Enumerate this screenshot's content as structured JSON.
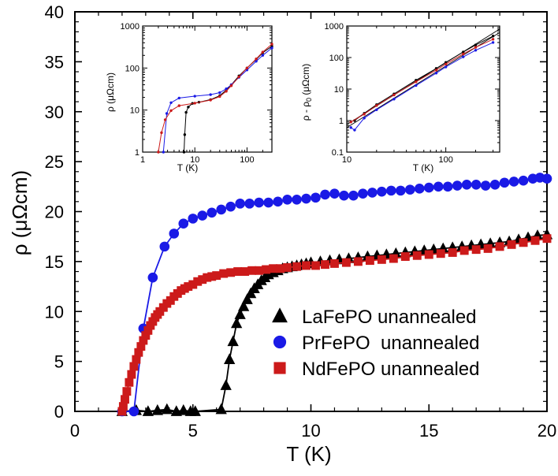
{
  "chart_data": [
    {
      "type": "line",
      "xlabel": "T (K)",
      "ylabel": "ρ (μΩcm)",
      "xlim": [
        0,
        20
      ],
      "ylim": [
        0,
        40
      ],
      "x_ticks": [
        "0",
        "5",
        "10",
        "15",
        "20"
      ],
      "y_ticks": [
        "0",
        "5",
        "10",
        "15",
        "20",
        "25",
        "30",
        "35",
        "40"
      ],
      "grid": false,
      "legend": "lower-right",
      "series": [
        {
          "name": "LaFePO unannealed",
          "color": "#000000",
          "marker": "triangle",
          "points": [
            [
              2.0,
              0.0
            ],
            [
              2.6,
              0.1
            ],
            [
              3.1,
              0.0
            ],
            [
              3.5,
              0.1
            ],
            [
              3.9,
              0.2
            ],
            [
              4.3,
              0.0
            ],
            [
              4.6,
              0.1
            ],
            [
              4.9,
              0.0
            ],
            [
              5.1,
              0.0
            ],
            [
              6.2,
              0.2
            ],
            [
              6.4,
              2.6
            ],
            [
              6.55,
              5.2
            ],
            [
              6.7,
              7.0
            ],
            [
              6.85,
              8.8
            ],
            [
              7.0,
              9.7
            ],
            [
              7.15,
              10.5
            ],
            [
              7.3,
              11.2
            ],
            [
              7.45,
              11.8
            ],
            [
              7.6,
              12.3
            ],
            [
              7.75,
              12.7
            ],
            [
              7.9,
              13.1
            ],
            [
              8.05,
              13.4
            ],
            [
              8.2,
              13.7
            ],
            [
              8.4,
              13.9
            ],
            [
              8.6,
              14.1
            ],
            [
              8.8,
              14.3
            ],
            [
              9.0,
              14.4
            ],
            [
              9.2,
              14.5
            ],
            [
              9.4,
              14.6
            ],
            [
              9.6,
              14.7
            ],
            [
              9.8,
              14.8
            ],
            [
              10.0,
              14.9
            ],
            [
              10.4,
              15.0
            ],
            [
              10.8,
              15.1
            ],
            [
              11.2,
              15.2
            ],
            [
              11.6,
              15.3
            ],
            [
              12.0,
              15.4
            ],
            [
              12.4,
              15.5
            ],
            [
              12.8,
              15.6
            ],
            [
              13.2,
              15.7
            ],
            [
              13.6,
              15.8
            ],
            [
              14.0,
              15.9
            ],
            [
              14.4,
              16.0
            ],
            [
              14.8,
              16.1
            ],
            [
              15.2,
              16.2
            ],
            [
              15.6,
              16.3
            ],
            [
              16.0,
              16.4
            ],
            [
              16.4,
              16.5
            ],
            [
              16.8,
              16.6
            ],
            [
              17.2,
              16.7
            ],
            [
              17.6,
              16.8
            ],
            [
              18.0,
              16.9
            ],
            [
              18.4,
              17.0
            ],
            [
              18.8,
              17.2
            ],
            [
              19.2,
              17.4
            ],
            [
              19.6,
              17.6
            ],
            [
              20.0,
              17.7
            ]
          ]
        },
        {
          "name": "PrFePO  unannealed",
          "color": "#1a1ae6",
          "marker": "circle",
          "points": [
            [
              2.0,
              0.0
            ],
            [
              2.5,
              0.0
            ],
            [
              2.9,
              8.3
            ],
            [
              3.3,
              13.4
            ],
            [
              3.8,
              16.5
            ],
            [
              4.2,
              17.8
            ],
            [
              4.6,
              18.8
            ],
            [
              5.0,
              19.3
            ],
            [
              5.4,
              19.6
            ],
            [
              5.8,
              19.9
            ],
            [
              6.2,
              20.2
            ],
            [
              6.6,
              20.5
            ],
            [
              7.0,
              20.8
            ],
            [
              7.4,
              20.8
            ],
            [
              7.8,
              20.9
            ],
            [
              8.2,
              20.9
            ],
            [
              8.6,
              21.0
            ],
            [
              9.0,
              21.2
            ],
            [
              9.4,
              21.2
            ],
            [
              9.8,
              21.3
            ],
            [
              10.2,
              21.4
            ],
            [
              10.6,
              21.7
            ],
            [
              11.0,
              21.8
            ],
            [
              11.4,
              21.6
            ],
            [
              11.8,
              21.6
            ],
            [
              12.2,
              21.8
            ],
            [
              12.6,
              21.9
            ],
            [
              13.0,
              22.0
            ],
            [
              13.4,
              22.1
            ],
            [
              13.8,
              22.1
            ],
            [
              14.2,
              22.2
            ],
            [
              14.6,
              22.3
            ],
            [
              15.0,
              22.4
            ],
            [
              15.4,
              22.5
            ],
            [
              15.8,
              22.5
            ],
            [
              16.2,
              22.6
            ],
            [
              16.6,
              22.7
            ],
            [
              17.0,
              22.7
            ],
            [
              17.4,
              22.6
            ],
            [
              17.8,
              22.7
            ],
            [
              18.2,
              22.9
            ],
            [
              18.6,
              23.0
            ],
            [
              19.0,
              23.1
            ],
            [
              19.4,
              23.3
            ],
            [
              19.7,
              23.4
            ],
            [
              20.0,
              23.3
            ]
          ]
        },
        {
          "name": "NdFePO unannealed",
          "color": "#cc1a1a",
          "marker": "square",
          "points": [
            [
              2.0,
              0.0
            ],
            [
              2.05,
              0.5
            ],
            [
              2.12,
              1.2
            ],
            [
              2.2,
              2.0
            ],
            [
              2.3,
              2.9
            ],
            [
              2.4,
              3.7
            ],
            [
              2.5,
              4.5
            ],
            [
              2.6,
              5.2
            ],
            [
              2.7,
              5.9
            ],
            [
              2.8,
              6.5
            ],
            [
              2.9,
              7.1
            ],
            [
              3.0,
              7.6
            ],
            [
              3.1,
              8.1
            ],
            [
              3.2,
              8.6
            ],
            [
              3.3,
              9.0
            ],
            [
              3.4,
              9.4
            ],
            [
              3.5,
              9.7
            ],
            [
              3.6,
              10.0
            ],
            [
              3.75,
              10.4
            ],
            [
              3.9,
              10.8
            ],
            [
              4.05,
              11.1
            ],
            [
              4.2,
              11.5
            ],
            [
              4.35,
              11.8
            ],
            [
              4.5,
              12.1
            ],
            [
              4.65,
              12.3
            ],
            [
              4.8,
              12.5
            ],
            [
              5.0,
              12.7
            ],
            [
              5.2,
              13.0
            ],
            [
              5.4,
              13.2
            ],
            [
              5.6,
              13.4
            ],
            [
              5.8,
              13.5
            ],
            [
              6.0,
              13.6
            ],
            [
              6.3,
              13.8
            ],
            [
              6.6,
              13.9
            ],
            [
              6.9,
              14.0
            ],
            [
              7.2,
              14.0
            ],
            [
              7.5,
              14.1
            ],
            [
              7.8,
              14.1
            ],
            [
              8.1,
              14.2
            ],
            [
              8.4,
              14.3
            ],
            [
              8.7,
              14.3
            ],
            [
              9.0,
              14.4
            ],
            [
              9.4,
              14.5
            ],
            [
              9.8,
              14.6
            ],
            [
              10.2,
              14.6
            ],
            [
              10.6,
              14.7
            ],
            [
              11.0,
              14.8
            ],
            [
              11.5,
              14.9
            ],
            [
              12.0,
              15.0
            ],
            [
              12.5,
              15.1
            ],
            [
              13.0,
              15.2
            ],
            [
              13.5,
              15.3
            ],
            [
              14.0,
              15.5
            ],
            [
              14.5,
              15.6
            ],
            [
              15.0,
              15.7
            ],
            [
              15.5,
              15.8
            ],
            [
              16.0,
              15.9
            ],
            [
              16.5,
              16.1
            ],
            [
              17.0,
              16.2
            ],
            [
              17.5,
              16.3
            ],
            [
              18.0,
              16.5
            ],
            [
              18.5,
              16.7
            ],
            [
              19.0,
              16.9
            ],
            [
              19.5,
              17.1
            ],
            [
              20.0,
              17.3
            ]
          ]
        }
      ]
    },
    {
      "type": "line",
      "xlabel": "T (K)",
      "ylabel": "ρ (μΩcm)",
      "x_scale": "log",
      "y_scale": "log",
      "xlim": [
        1,
        300
      ],
      "ylim": [
        1,
        1000
      ],
      "x_ticks": [
        "1",
        "10",
        "100"
      ],
      "y_ticks": [
        "1",
        "10",
        "100",
        "1000"
      ],
      "series": [
        {
          "color": "#000000",
          "points": [
            [
              6.2,
              1.0
            ],
            [
              6.4,
              2.6
            ],
            [
              6.8,
              8.8
            ],
            [
              7.5,
              11.8
            ],
            [
              9,
              14.4
            ],
            [
              12,
              15.4
            ],
            [
              20,
              17.7
            ],
            [
              30,
              22
            ],
            [
              40,
              30
            ],
            [
              50,
              40
            ],
            [
              70,
              65
            ],
            [
              100,
              100
            ],
            [
              150,
              160
            ],
            [
              200,
              230
            ],
            [
              300,
              330
            ]
          ]
        },
        {
          "color": "#1a1ae6",
          "points": [
            [
              2.5,
              1.0
            ],
            [
              2.9,
              8.3
            ],
            [
              3.5,
              15
            ],
            [
              5,
              19.3
            ],
            [
              10,
              21.4
            ],
            [
              20,
              23.3
            ],
            [
              30,
              26
            ],
            [
              40,
              32
            ],
            [
              50,
              40
            ],
            [
              70,
              60
            ],
            [
              100,
              90
            ],
            [
              150,
              145
            ],
            [
              200,
              200
            ],
            [
              300,
              300
            ]
          ]
        },
        {
          "color": "#cc1a1a",
          "points": [
            [
              2.0,
              1.0
            ],
            [
              2.3,
              2.9
            ],
            [
              2.7,
              5.9
            ],
            [
              3.5,
              9.7
            ],
            [
              5,
              12.7
            ],
            [
              10,
              14.6
            ],
            [
              20,
              17.3
            ],
            [
              30,
              21
            ],
            [
              40,
              28
            ],
            [
              50,
              38
            ],
            [
              70,
              62
            ],
            [
              100,
              100
            ],
            [
              150,
              165
            ],
            [
              200,
              240
            ],
            [
              300,
              370
            ]
          ]
        }
      ]
    },
    {
      "type": "line",
      "xlabel": "T (K)",
      "ylabel": "ρ - ρ0 (μΩcm)",
      "x_scale": "log",
      "y_scale": "log",
      "xlim": [
        10,
        350
      ],
      "ylim": [
        0.1,
        1000
      ],
      "x_ticks": [
        "10",
        "100"
      ],
      "y_ticks": [
        "0.1",
        "1",
        "10",
        "100",
        "1000"
      ],
      "series": [
        {
          "color": "#000000",
          "points": [
            [
              12,
              1.0
            ],
            [
              15,
              1.7
            ],
            [
              20,
              3.2
            ],
            [
              30,
              7
            ],
            [
              50,
              19
            ],
            [
              80,
              45
            ],
            [
              100,
              70
            ],
            [
              150,
              150
            ],
            [
              200,
              250
            ],
            [
              300,
              480
            ]
          ]
        },
        {
          "color": "#1a1ae6",
          "points": [
            [
              11,
              0.6
            ],
            [
              12,
              0.5
            ],
            [
              15,
              1.2
            ],
            [
              20,
              2.2
            ],
            [
              30,
              4.8
            ],
            [
              50,
              13
            ],
            [
              80,
              32
            ],
            [
              100,
              50
            ],
            [
              150,
              105
            ],
            [
              200,
              170
            ],
            [
              300,
              300
            ]
          ]
        },
        {
          "color": "#cc1a1a",
          "points": [
            [
              11,
              0.9
            ],
            [
              15,
              1.6
            ],
            [
              20,
              3.0
            ],
            [
              30,
              6.5
            ],
            [
              50,
              17
            ],
            [
              80,
              40
            ],
            [
              100,
              62
            ],
            [
              150,
              130
            ],
            [
              200,
              210
            ],
            [
              300,
              380
            ]
          ]
        }
      ]
    }
  ],
  "labels": {
    "main_xlabel": "T (K)",
    "main_ylabel": "ρ (μΩcm)",
    "inset1_xlabel": "T (K)",
    "inset1_ylabel": "ρ (μΩcm)",
    "inset2_xlabel": "T (K)",
    "inset2_ylabel_a": "ρ - ρ",
    "inset2_ylabel_sub": "0",
    "inset2_ylabel_b": " (μΩcm)"
  }
}
